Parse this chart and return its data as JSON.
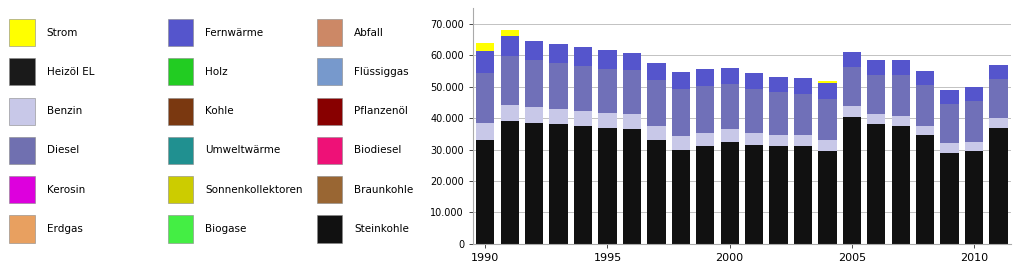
{
  "years": [
    1990,
    1991,
    1992,
    1993,
    1994,
    1995,
    1996,
    1997,
    1998,
    1999,
    2000,
    2001,
    2002,
    2003,
    2004,
    2005,
    2006,
    2007,
    2008,
    2009,
    2010,
    2011
  ],
  "heizoel": [
    33000,
    39000,
    38500,
    38000,
    37500,
    37000,
    36500,
    33000,
    30000,
    31000,
    32500,
    31500,
    31000,
    31000,
    29500,
    40500,
    38000,
    37500,
    34500,
    29000,
    29500,
    37000
  ],
  "benzin": [
    5500,
    5200,
    5000,
    4800,
    4700,
    4600,
    4800,
    4500,
    4200,
    4200,
    4000,
    3900,
    3700,
    3700,
    3600,
    3400,
    3300,
    3200,
    3100,
    3000,
    2900,
    2900
  ],
  "diesel": [
    16000,
    15500,
    15000,
    14800,
    14500,
    14000,
    14000,
    14500,
    15000,
    15000,
    14500,
    14000,
    13500,
    13000,
    13000,
    12500,
    12500,
    13000,
    13000,
    12500,
    13000,
    12500
  ],
  "fernwaerme": [
    7000,
    6500,
    6000,
    6000,
    6000,
    6000,
    5500,
    5500,
    5500,
    5500,
    5000,
    5000,
    5000,
    5000,
    5000,
    4800,
    4800,
    4800,
    4500,
    4500,
    4500,
    4500
  ],
  "strom": [
    2500,
    2000,
    0,
    0,
    0,
    0,
    0,
    0,
    0,
    0,
    0,
    0,
    0,
    0,
    700,
    0,
    0,
    0,
    0,
    0,
    0,
    0
  ],
  "legend_items": [
    {
      "label": "Strom",
      "color": "#FFFF00"
    },
    {
      "label": "Heizöl EL",
      "color": "#1a1a1a"
    },
    {
      "label": "Benzin",
      "color": "#c8c8e8"
    },
    {
      "label": "Diesel",
      "color": "#7070b0"
    },
    {
      "label": "Kerosin",
      "color": "#dd00dd"
    },
    {
      "label": "Erdgas",
      "color": "#e8a060"
    },
    {
      "label": "Fernwärme",
      "color": "#5555cc"
    },
    {
      "label": "Holz",
      "color": "#22cc22"
    },
    {
      "label": "Kohle",
      "color": "#7a3810"
    },
    {
      "label": "Umweltwärme",
      "color": "#209090"
    },
    {
      "label": "Sonnenkollektoren",
      "color": "#cccc00"
    },
    {
      "label": "Biogase",
      "color": "#44ee44"
    },
    {
      "label": "Abfall",
      "color": "#cc8866"
    },
    {
      "label": "Flüssiggas",
      "color": "#7799cc"
    },
    {
      "label": "Pflanzenöl",
      "color": "#880000"
    },
    {
      "label": "Biodiesel",
      "color": "#ee1177"
    },
    {
      "label": "Braunkohle",
      "color": "#996633"
    },
    {
      "label": "Steinkohle",
      "color": "#111111"
    }
  ],
  "colors": {
    "heizoel": "#111111",
    "benzin": "#c8c8e8",
    "diesel": "#7070b8",
    "fernwaerme": "#5555cc",
    "strom": "#FFFF00"
  },
  "ylim": [
    0,
    75000
  ],
  "yticks": [
    0,
    10000,
    20000,
    30000,
    40000,
    50000,
    60000,
    70000
  ],
  "ytick_labels": [
    "0",
    "10.000",
    "20.000",
    "30.000",
    "40.000",
    "50.000",
    "60.000",
    "70.000"
  ],
  "bar_width": 0.75,
  "background_color": "#ffffff",
  "grid_color": "#aaaaaa"
}
